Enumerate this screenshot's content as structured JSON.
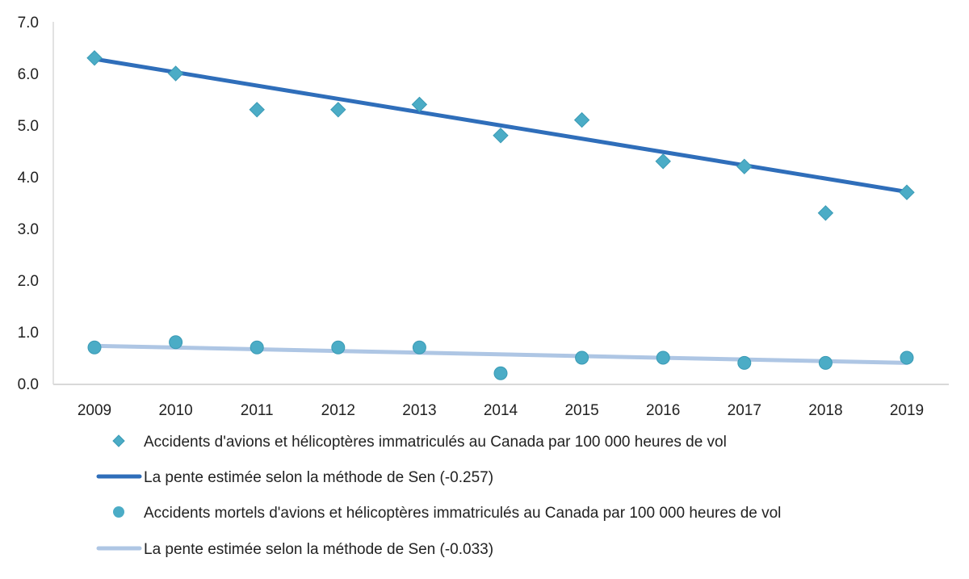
{
  "chart_data": {
    "type": "scatter",
    "title": "",
    "xlabel": "",
    "ylabel": "",
    "x": [
      2009,
      2010,
      2011,
      2012,
      2013,
      2014,
      2015,
      2016,
      2017,
      2018,
      2019
    ],
    "x_tick_labels": [
      "2009",
      "2010",
      "2011",
      "2012",
      "2013",
      "2014",
      "2015",
      "2016",
      "2017",
      "2018",
      "2019"
    ],
    "ylim": [
      0,
      7
    ],
    "y_tick_labels": [
      "0.0",
      "1.0",
      "2.0",
      "3.0",
      "4.0",
      "5.0",
      "6.0",
      "7.0"
    ],
    "grid": false,
    "legend_placement": "bottom",
    "series": [
      {
        "name": "Accidents d'avions et hélicoptères immatriculés au Canada par 100 000 heures de vol",
        "kind": "diamond",
        "color": "#4BACC6",
        "values": [
          6.3,
          6.0,
          5.3,
          5.3,
          5.4,
          4.8,
          5.1,
          4.3,
          4.2,
          3.3,
          3.7
        ]
      },
      {
        "name": "La pente estimée selon la méthode de Sen (-0.257)",
        "kind": "trend",
        "color": "#2F6EBA",
        "start": 6.28,
        "end": 3.71
      },
      {
        "name": "Accidents mortels d'avions et hélicoptères immatriculés au Canada par 100 000 heures de vol",
        "kind": "circle",
        "color": "#4BACC6",
        "values": [
          0.7,
          0.8,
          0.7,
          0.7,
          0.7,
          0.2,
          0.5,
          0.5,
          0.4,
          0.4,
          0.5
        ]
      },
      {
        "name": "La pente estimée selon la méthode de Sen (-0.033)",
        "kind": "trend",
        "color": "#AEC6E4",
        "start": 0.73,
        "end": 0.4
      }
    ]
  }
}
